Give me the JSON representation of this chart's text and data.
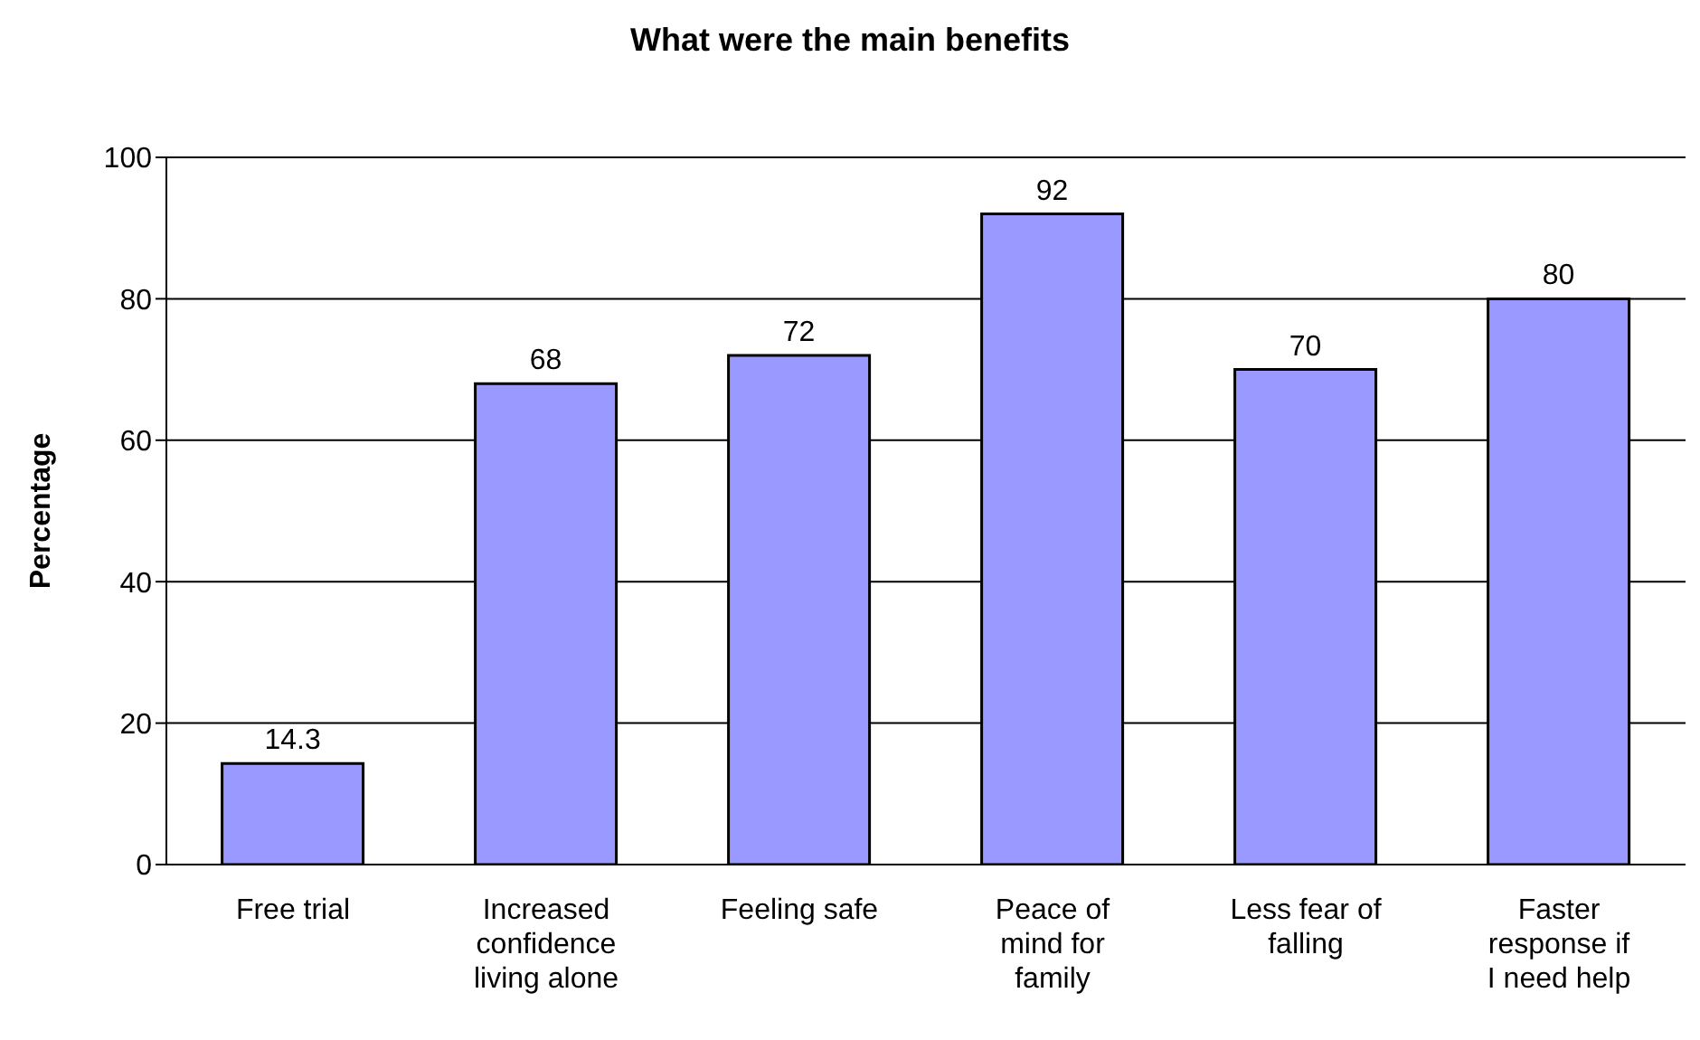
{
  "chart_data": {
    "type": "bar",
    "title": "What were the main benefits",
    "ylabel": "Percentage",
    "categories": [
      "Free trial",
      "Increased confidence living alone",
      "Feeling safe",
      "Peace of mind for family",
      "Less fear of falling",
      "Faster response if I need help"
    ],
    "values": [
      14.3,
      68,
      72,
      92,
      70,
      80
    ],
    "color": "#9999ff",
    "ylim": [
      0,
      100
    ],
    "yticks": [
      0,
      20,
      40,
      60,
      80,
      100
    ],
    "grid": "y",
    "data_labels": true,
    "legend": false
  }
}
